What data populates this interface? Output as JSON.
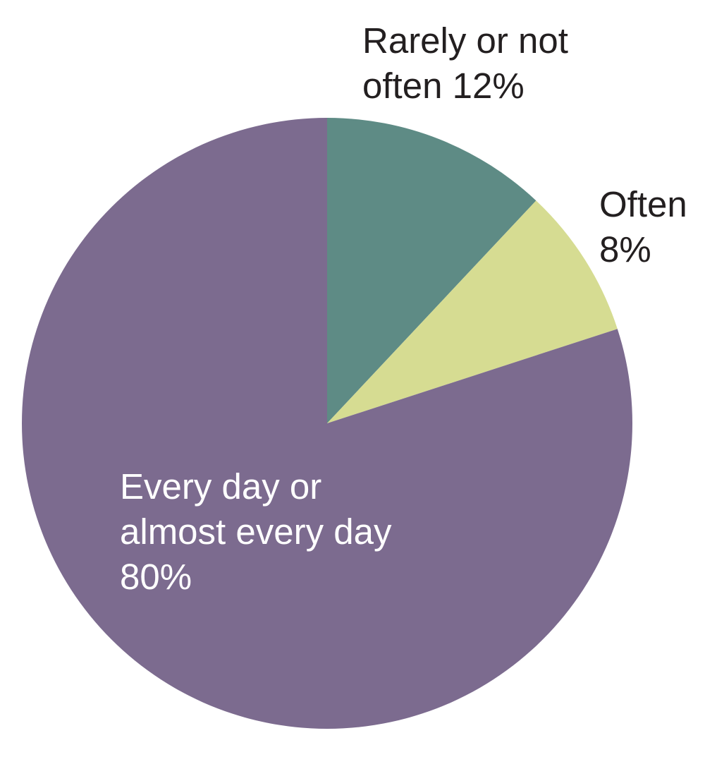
{
  "chart_data": {
    "type": "pie",
    "title": "",
    "start_angle_deg": 0,
    "direction": "clockwise",
    "slices": [
      {
        "label_lines": [
          "Rarely or not",
          "often 12%"
        ],
        "category": "Rarely or not often",
        "value": 12,
        "color": "#5e8b85",
        "label_color": "#231f20",
        "label_placement": "outside"
      },
      {
        "label_lines": [
          "Often",
          "8%"
        ],
        "category": "Often",
        "value": 8,
        "color": "#d6dc92",
        "label_color": "#231f20",
        "label_placement": "outside"
      },
      {
        "label_lines": [
          "Every day or",
          "almost every day",
          "80%"
        ],
        "category": "Every day or almost every day",
        "value": 80,
        "color": "#7c6b8f",
        "label_color": "#ffffff",
        "label_placement": "inside"
      }
    ]
  }
}
